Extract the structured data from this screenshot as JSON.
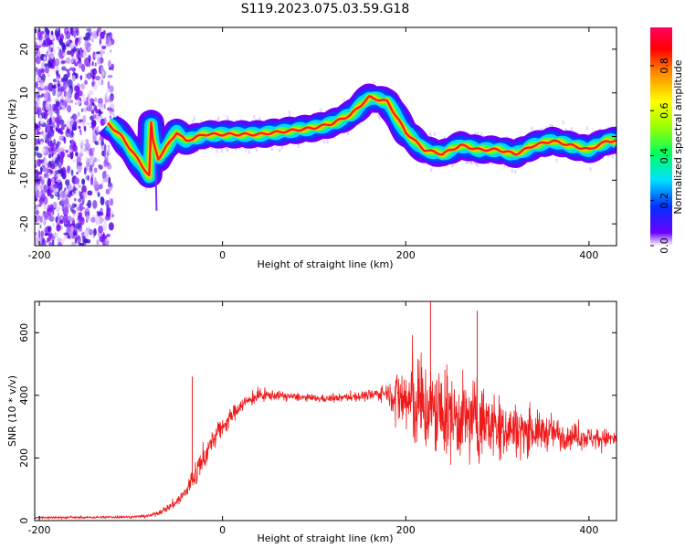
{
  "title": "S119.2023.075.03.59.G18",
  "chart_data": [
    {
      "type": "heatmap",
      "xlabel": "Height of straight line (km)",
      "ylabel": "Frequency (Hz)",
      "xlim": [
        -205,
        430
      ],
      "ylim": [
        -25,
        25
      ],
      "xticks": [
        "-200",
        "0",
        "200",
        "400"
      ],
      "yticks": [
        "-20",
        "-10",
        "0",
        "10",
        "20"
      ],
      "colorbar": {
        "label": "Normalized spectral amplitude",
        "range": [
          0,
          0.97
        ],
        "ticks": [
          "0.0",
          "0.2",
          "0.4",
          "0.6",
          "0.8"
        ],
        "colors": [
          "#ffffff",
          "#6a00ff",
          "#0030ff",
          "#00e0ff",
          "#00ff60",
          "#a0ff00",
          "#ffff00",
          "#ff8000",
          "#ff0000",
          "#ff0060"
        ]
      },
      "noise_region": {
        "x": [
          -205,
          -120
        ],
        "y": [
          -25,
          25
        ]
      },
      "ridge": {
        "x": [
          -125,
          -110,
          -100,
          -90,
          -80,
          -78,
          -76,
          -70,
          -60,
          -50,
          -40,
          -20,
          0,
          20,
          40,
          60,
          80,
          100,
          120,
          140,
          160,
          180,
          200,
          220,
          240,
          260,
          280,
          300,
          320,
          340,
          360,
          380,
          400,
          420,
          430
        ],
        "y": [
          3,
          0,
          -3,
          -6,
          -9,
          3,
          -1,
          -5,
          -2,
          1,
          -1,
          0.5,
          0.5,
          0.5,
          0.5,
          1,
          1.5,
          2,
          3,
          5,
          9,
          8,
          1,
          -3,
          -4,
          -2,
          -3,
          -3,
          -4,
          -2,
          -1,
          -2,
          -3,
          -1,
          -1
        ]
      }
    },
    {
      "type": "line",
      "xlabel": "Height of straight line (km)",
      "ylabel": "SNR (10 * v/v)",
      "xlim": [
        -205,
        430
      ],
      "ylim": [
        0,
        700
      ],
      "xticks": [
        "-200",
        "0",
        "200",
        "400"
      ],
      "yticks": [
        "0",
        "200",
        "400",
        "600"
      ],
      "color": "#ee1c1c",
      "envelope": {
        "x": [
          -205,
          -150,
          -100,
          -80,
          -70,
          -60,
          -50,
          -40,
          -30,
          -20,
          -10,
          0,
          20,
          40,
          60,
          80,
          100,
          120,
          140,
          160,
          180,
          195,
          210,
          230,
          250,
          280,
          300,
          320,
          340,
          360,
          380,
          400,
          430
        ],
        "mean": [
          10,
          10,
          12,
          15,
          25,
          40,
          60,
          90,
          150,
          200,
          260,
          300,
          370,
          400,
          400,
          395,
          390,
          390,
          395,
          400,
          410,
          390,
          370,
          350,
          330,
          320,
          300,
          290,
          285,
          280,
          270,
          265,
          260
        ],
        "spread": [
          6,
          6,
          6,
          8,
          14,
          20,
          30,
          45,
          80,
          70,
          60,
          50,
          40,
          35,
          25,
          20,
          20,
          20,
          25,
          30,
          45,
          200,
          260,
          250,
          230,
          200,
          170,
          140,
          110,
          90,
          70,
          60,
          50
        ]
      },
      "peaks": [
        {
          "x": -33,
          "y": 460
        },
        {
          "x": 227,
          "y": 700
        },
        {
          "x": 278,
          "y": 670
        }
      ]
    }
  ]
}
